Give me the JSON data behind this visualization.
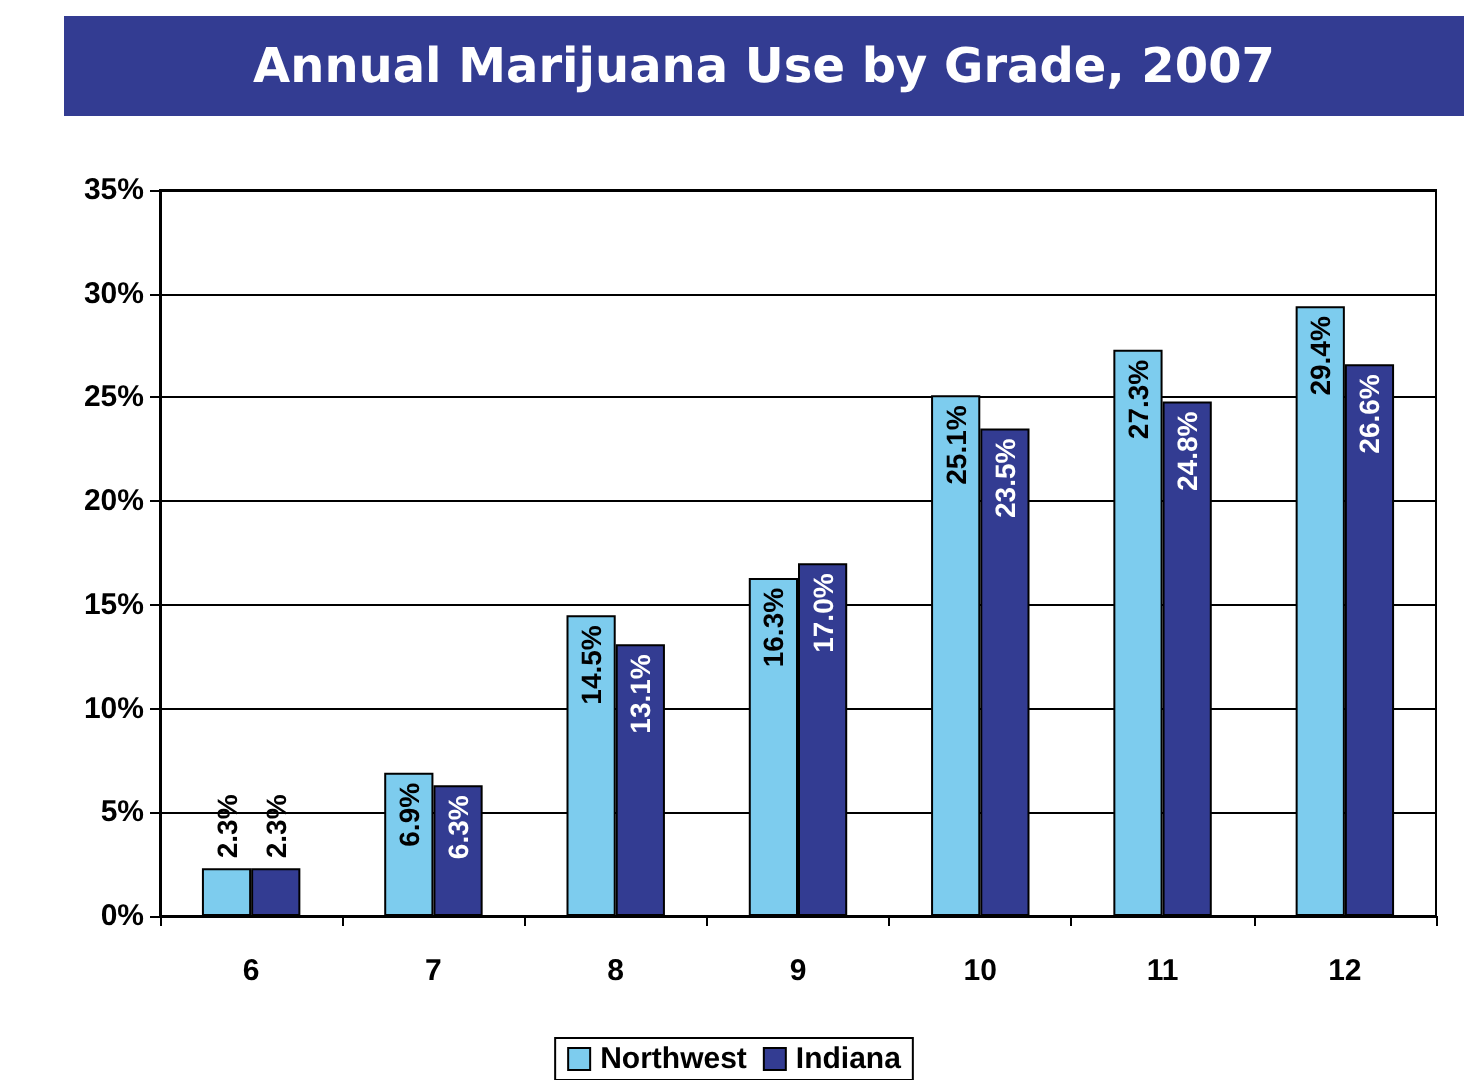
{
  "chart_data": {
    "type": "bar",
    "title": "Annual Marijuana Use by Grade, 2007",
    "categories": [
      "6",
      "7",
      "8",
      "9",
      "10",
      "11",
      "12"
    ],
    "series": [
      {
        "name": "Northwest",
        "color": "#7dccee",
        "values": [
          2.3,
          6.9,
          14.5,
          16.3,
          25.1,
          27.3,
          29.4
        ],
        "value_labels": [
          "2.3%",
          "6.9%",
          "14.5%",
          "16.3%",
          "25.1%",
          "27.3%",
          "29.4%"
        ]
      },
      {
        "name": "Indiana",
        "color": "#333c92",
        "values": [
          2.3,
          6.3,
          13.1,
          17.0,
          23.5,
          24.8,
          26.6
        ],
        "value_labels": [
          "2.3%",
          "6.3%",
          "13.1%",
          "17.0%",
          "23.5%",
          "24.8%",
          "26.6%"
        ]
      }
    ],
    "ylim": [
      0,
      35
    ],
    "yticks": [
      {
        "value": 0,
        "label": "0%"
      },
      {
        "value": 5,
        "label": "5%"
      },
      {
        "value": 10,
        "label": "10%"
      },
      {
        "value": 15,
        "label": "15%"
      },
      {
        "value": 20,
        "label": "20%"
      },
      {
        "value": 25,
        "label": "25%"
      },
      {
        "value": 30,
        "label": "30%"
      },
      {
        "value": 35,
        "label": "35%"
      }
    ],
    "grid": "y",
    "legend": "bottom"
  }
}
